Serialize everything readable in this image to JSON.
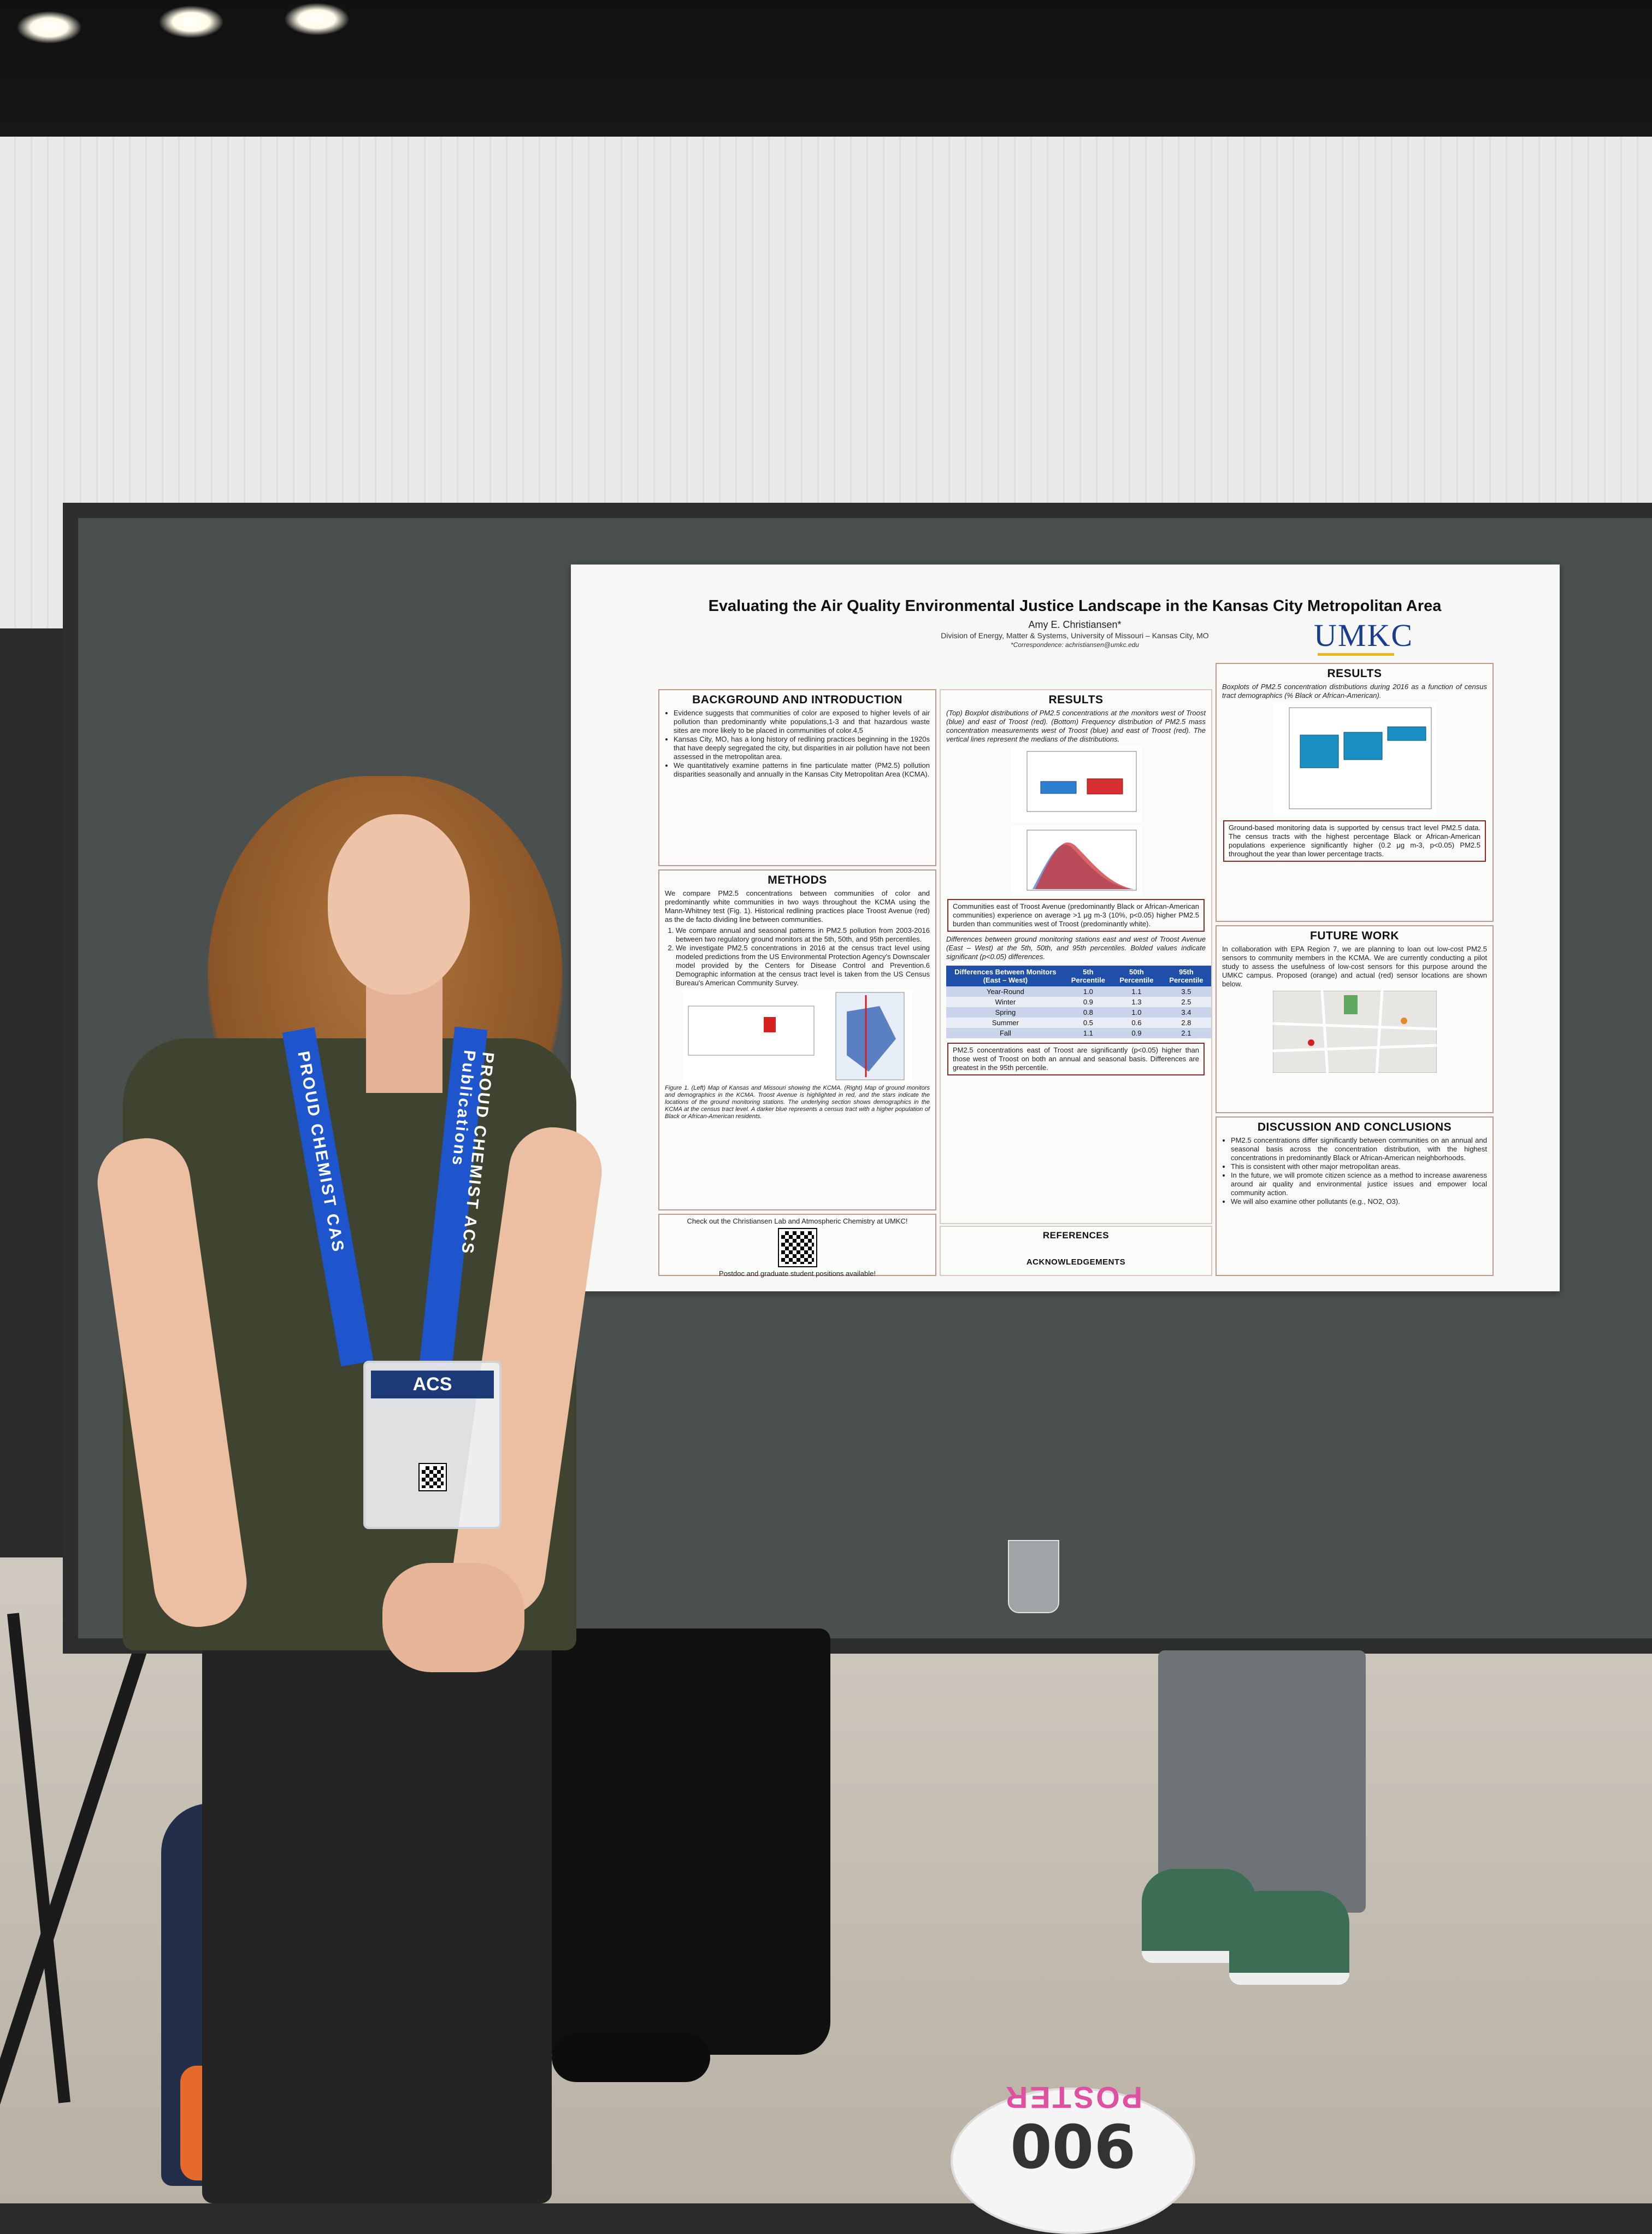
{
  "poster": {
    "title": "Evaluating the Air Quality Environmental Justice Landscape in the Kansas City Metropolitan Area",
    "author": "Amy E. Christiansen*",
    "affiliation": "Division of Energy, Matter & Systems, University of Missouri – Kansas City, MO",
    "correspondence": "*Correspondence: achristiansen@umkc.edu",
    "logo": "UMKC",
    "background": {
      "heading": "BACKGROUND AND INTRODUCTION",
      "bullets": [
        "Evidence suggests that communities of color are exposed to higher levels of air pollution than predominantly white populations,1-3 and that hazardous waste sites are more likely to be placed in communities of color.4,5",
        "Kansas City, MO, has a long history of redlining practices beginning in the 1920s that have deeply segregated the city, but disparities in air pollution have not been assessed in the metropolitan area.",
        "We quantitatively examine patterns in fine particulate matter (PM2.5) pollution disparities seasonally and annually in the Kansas City Metropolitan Area (KCMA)."
      ]
    },
    "methods": {
      "heading": "METHODS",
      "intro": "We compare PM2.5 concentrations between communities of color and predominantly white communities in two ways throughout the KCMA using the Mann-Whitney test (Fig. 1). Historical redlining practices place Troost Avenue (red) as the de facto dividing line between communities.",
      "steps": [
        "We compare annual and seasonal patterns in PM2.5 pollution from 2003-2016 between two regulatory ground monitors at the 5th, 50th, and 95th percentiles.",
        "We investigate PM2.5 concentrations in 2016 at the census tract level using modeled predictions from the US Environmental Protection Agency's Downscaler model provided by the Centers for Disease Control and Prevention.6 Demographic information at the census tract level is taken from the US Census Bureau's American Community Survey."
      ],
      "figure_caption": "Figure 1. (Left) Map of Kansas and Missouri showing the KCMA. (Right) Map of ground monitors and demographics in the KCMA. Troost Avenue is highlighted in red, and the stars indicate the locations of the ground monitoring stations. The underlying section shows demographics in the KCMA at the census tract level. A darker blue represents a census tract with a higher population of Black or African-American residents."
    },
    "lab_box": {
      "text": "Check out the Christiansen Lab and Atmospheric Chemistry at UMKC!",
      "footer": "Postdoc and graduate student positions available!"
    },
    "results_mid": {
      "heading": "RESULTS",
      "caption": "(Top) Boxplot distributions of PM2.5 concentrations at the monitors west of Troost (blue) and east of Troost (red). (Bottom) Frequency distribution of PM2.5 mass concentration measurements west of Troost (blue) and east of Troost (red). The vertical lines represent the medians of the distributions.",
      "finding1": "Communities east of Troost Avenue (predominantly Black or African-American communities) experience on average >1 μg m-3 (10%, p<0.05) higher PM2.5 burden than communities west of Troost (predominantly white).",
      "table_caption": "Differences between ground monitoring stations east and west of Troost Avenue (East – West) at the 5th, 50th, and 95th percentiles. Bolded values indicate significant (p<0.05) differences.",
      "table_headers": [
        "Differences Between Monitors (East – West)",
        "5th Percentile",
        "50th Percentile",
        "95th Percentile"
      ],
      "table_rows": [
        [
          "Year-Round",
          "1.0",
          "1.1",
          "3.5"
        ],
        [
          "Winter",
          "0.9",
          "1.3",
          "2.5"
        ],
        [
          "Spring",
          "0.8",
          "1.0",
          "3.4"
        ],
        [
          "Summer",
          "0.5",
          "0.6",
          "2.8"
        ],
        [
          "Fall",
          "1.1",
          "0.9",
          "2.1"
        ]
      ],
      "finding2": "PM2.5 concentrations east of Troost are significantly (p<0.05) higher than those west of Troost on both an annual and seasonal basis. Differences are greatest in the 95th percentile."
    },
    "references": {
      "heading": "REFERENCES",
      "ack_heading": "ACKNOWLEDGEMENTS"
    },
    "results_right": {
      "heading": "RESULTS",
      "caption": "Boxplots of PM2.5 concentration distributions during 2016 as a function of census tract demographics (% Black or African-American).",
      "finding": "Ground-based monitoring data is supported by census tract level PM2.5 data. The census tracts with the highest percentage Black or African-American populations experience significantly higher (0.2 μg m-3, p<0.05) PM2.5 throughout the year than lower percentage tracts."
    },
    "future_work": {
      "heading": "FUTURE WORK",
      "text": "In collaboration with EPA Region 7, we are planning to loan out low-cost PM2.5 sensors to community members in the KCMA. We are currently conducting a pilot study to assess the usefulness of low-cost sensors for this purpose around the UMKC campus. Proposed (orange) and actual (red) sensor locations are shown below."
    },
    "discussion": {
      "heading": "DISCUSSION AND CONCLUSIONS",
      "bullets": [
        "PM2.5 concentrations differ significantly between communities on an annual and seasonal basis across the concentration distribution, with the highest concentrations in predominantly Black or African-American neighborhoods.",
        "This is consistent with other major metropolitan areas.",
        "In the future, we will promote citizen science as a method to increase awareness around air quality and environmental justice issues and empower local community action.",
        "We will also examine other pollutants (e.g., NO2, O3)."
      ]
    }
  },
  "badge": {
    "org": "ACS"
  },
  "lanyard": {
    "left_text": "PROUD CHEMIST CAS",
    "right_text": "PROUD CHEMIST ACS Publications"
  },
  "sticker": {
    "number": "900",
    "label": "POSTER"
  }
}
